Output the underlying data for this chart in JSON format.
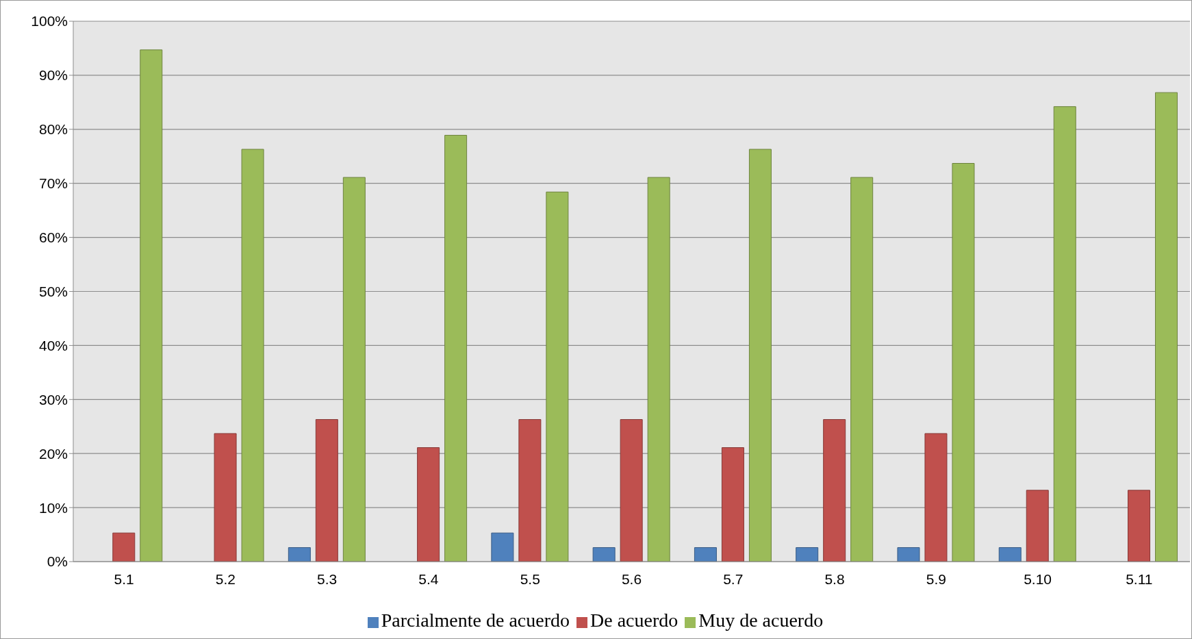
{
  "chart_data": {
    "type": "bar",
    "categories": [
      "5.1",
      "5.2",
      "5.3",
      "5.4",
      "5.5",
      "5.6",
      "5.7",
      "5.8",
      "5.9",
      "5.10",
      "5.11"
    ],
    "series": [
      {
        "name": "Parcialmente de acuerdo",
        "color": "#4f81bd",
        "values": [
          0,
          0,
          2.6,
          0,
          5.3,
          2.6,
          2.6,
          2.6,
          2.6,
          2.6,
          0
        ]
      },
      {
        "name": "De acuerdo",
        "color": "#c0504d",
        "values": [
          5.3,
          23.7,
          26.3,
          21.1,
          26.3,
          26.3,
          21.1,
          26.3,
          23.7,
          13.2,
          13.2
        ]
      },
      {
        "name": "Muy de acuerdo",
        "color": "#9bbb59",
        "values": [
          94.7,
          76.3,
          71.1,
          78.9,
          68.4,
          71.1,
          76.3,
          71.1,
          73.7,
          84.2,
          86.8
        ]
      }
    ],
    "ylim": [
      0,
      100
    ],
    "yticks": [
      {
        "value": 0,
        "label": "0%"
      },
      {
        "value": 10,
        "label": "10%"
      },
      {
        "value": 20,
        "label": "20%"
      },
      {
        "value": 30,
        "label": "30%"
      },
      {
        "value": 40,
        "label": "40%"
      },
      {
        "value": 50,
        "label": "50%"
      },
      {
        "value": 60,
        "label": "60%"
      },
      {
        "value": 70,
        "label": "70%"
      },
      {
        "value": 80,
        "label": "80%"
      },
      {
        "value": 90,
        "label": "90%"
      },
      {
        "value": 100,
        "label": "100%"
      }
    ],
    "grid": "y",
    "legend": "bottom"
  }
}
